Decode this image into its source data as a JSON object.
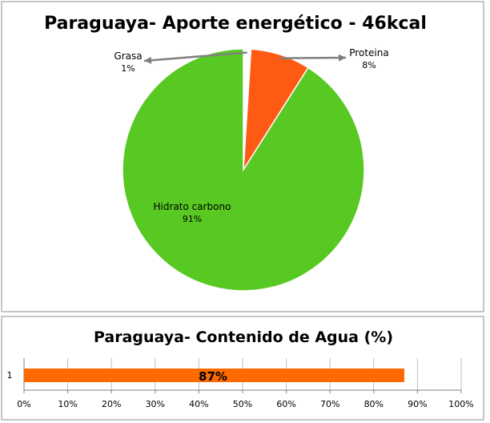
{
  "chart_data": [
    {
      "type": "pie",
      "title": "Paraguaya- Aporte energético - 46kcal",
      "slices": [
        {
          "label": "Grasa",
          "value": 1,
          "value_label": "1%",
          "color": "#ffffff"
        },
        {
          "label": "Proteina",
          "value": 8,
          "value_label": "8%",
          "color": "#ff5a14"
        },
        {
          "label": "Hidrato carbono",
          "value": 91,
          "value_label": "91%",
          "color": "#58c922"
        }
      ]
    },
    {
      "type": "bar",
      "orientation": "horizontal",
      "title": "Paraguaya- Contenido de Agua (%)",
      "categories": [
        "1"
      ],
      "values": [
        87
      ],
      "data_labels": [
        "87%"
      ],
      "color": "#ff6a00",
      "xlim": [
        0,
        100
      ],
      "x_ticks": [
        "0%",
        "10%",
        "20%",
        "30%",
        "40%",
        "50%",
        "60%",
        "70%",
        "80%",
        "90%",
        "100%"
      ],
      "grid": true
    }
  ]
}
